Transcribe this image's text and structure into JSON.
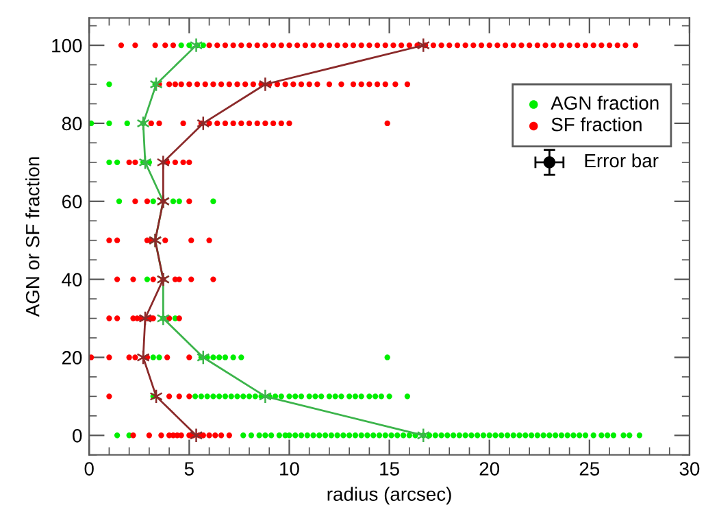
{
  "chart_data": {
    "type": "scatter",
    "xlabel": "radius (arcsec)",
    "ylabel": "AGN or SF fraction",
    "xlim": [
      0,
      30
    ],
    "ylim": [
      -5,
      107
    ],
    "xticks": [
      0,
      5,
      10,
      15,
      20,
      25,
      30,
      {
        "value": 1,
        "label": null
      },
      {
        "value": 2,
        "label": null
      },
      {
        "value": 3,
        "label": null
      },
      {
        "value": 4,
        "label": null
      },
      {
        "value": 6,
        "label": null
      },
      {
        "value": 7,
        "label": null
      },
      {
        "value": 8,
        "label": null
      },
      {
        "value": 9,
        "label": null
      },
      {
        "value": 11,
        "label": null
      },
      {
        "value": 12,
        "label": null
      },
      {
        "value": 13,
        "label": null
      },
      {
        "value": 14,
        "label": null
      },
      {
        "value": 16,
        "label": null
      },
      {
        "value": 17,
        "label": null
      },
      {
        "value": 18,
        "label": null
      },
      {
        "value": 19,
        "label": null
      },
      {
        "value": 21,
        "label": null
      },
      {
        "value": 22,
        "label": null
      },
      {
        "value": 23,
        "label": null
      },
      {
        "value": 24,
        "label": null
      },
      {
        "value": 26,
        "label": null
      },
      {
        "value": 27,
        "label": null
      },
      {
        "value": 28,
        "label": null
      },
      {
        "value": 29,
        "label": null
      }
    ],
    "yticks": [
      0,
      20,
      40,
      60,
      80,
      100,
      {
        "value": -5,
        "label": null
      },
      {
        "value": 5,
        "label": null
      },
      {
        "value": 10,
        "label": null
      },
      {
        "value": 15,
        "label": null
      },
      {
        "value": 25,
        "label": null
      },
      {
        "value": 30,
        "label": null
      },
      {
        "value": 35,
        "label": null
      },
      {
        "value": 45,
        "label": null
      },
      {
        "value": 50,
        "label": null
      },
      {
        "value": 55,
        "label": null
      },
      {
        "value": 65,
        "label": null
      },
      {
        "value": 70,
        "label": null
      },
      {
        "value": 75,
        "label": null
      },
      {
        "value": 85,
        "label": null
      },
      {
        "value": 90,
        "label": null
      },
      {
        "value": 95,
        "label": null
      },
      {
        "value": 105,
        "label": null
      }
    ],
    "annotations": [
      {
        "text": "Error bar",
        "x": 23.0,
        "y": 70
      }
    ],
    "grid": false,
    "legend": "top right",
    "marker": "circle",
    "series": [
      {
        "name": "AGN fraction",
        "color": "#00ee00",
        "x": [
          1.4,
          2.0,
          7.7,
          8.1,
          8.5,
          8.8,
          9.1,
          9.5,
          9.8,
          10.0,
          10.3,
          10.6,
          10.9,
          11.2,
          11.5,
          11.8,
          12.1,
          12.4,
          12.7,
          13.0,
          13.3,
          13.6,
          13.9,
          14.2,
          14.5,
          14.8,
          15.1,
          15.4,
          15.7,
          16.0,
          16.3,
          16.7,
          17.0,
          17.3,
          17.6,
          17.9,
          18.2,
          18.5,
          18.8,
          19.1,
          19.4,
          19.7,
          20.0,
          20.3,
          20.6,
          20.9,
          21.2,
          21.5,
          21.8,
          22.1,
          22.4,
          22.7,
          23.0,
          23.3,
          23.6,
          23.9,
          24.2,
          24.5,
          24.8,
          25.2,
          25.6,
          25.9,
          26.2,
          26.7,
          27.0,
          27.5,
          3.2,
          5.3,
          5.6,
          5.9,
          6.2,
          6.5,
          6.8,
          7.1,
          7.4,
          7.7,
          8.0,
          8.3,
          8.6,
          9.0,
          9.3,
          9.6,
          10.0,
          10.3,
          10.6,
          11.0,
          11.3,
          11.6,
          12.0,
          12.3,
          12.6,
          13.0,
          13.3,
          13.6,
          14.0,
          14.3,
          14.6,
          15.0,
          15.9,
          3.2,
          3.5,
          5.6,
          5.9,
          6.2,
          6.5,
          6.8,
          7.2,
          7.6,
          14.9,
          3.7,
          4.3,
          2.9,
          1.5,
          3.2,
          4.2,
          4.5,
          6.2,
          1.0,
          1.4,
          2.7,
          3.0,
          0.1,
          1.0,
          1.9,
          2.7,
          1.0,
          3.3,
          4.6,
          5.0,
          5.4,
          5.7
        ],
        "values": [
          0,
          0,
          0,
          0,
          0,
          0,
          0,
          0,
          0,
          0,
          0,
          0,
          0,
          0,
          0,
          0,
          0,
          0,
          0,
          0,
          0,
          0,
          0,
          0,
          0,
          0,
          0,
          0,
          0,
          0,
          0,
          0,
          0,
          0,
          0,
          0,
          0,
          0,
          0,
          0,
          0,
          0,
          0,
          0,
          0,
          0,
          0,
          0,
          0,
          0,
          0,
          0,
          0,
          0,
          0,
          0,
          0,
          0,
          0,
          0,
          0,
          0,
          0,
          0,
          0,
          0,
          10,
          10,
          10,
          10,
          10,
          10,
          10,
          10,
          10,
          10,
          10,
          10,
          10,
          10,
          10,
          10,
          10,
          10,
          10,
          10,
          10,
          10,
          10,
          10,
          10,
          10,
          10,
          10,
          10,
          10,
          10,
          10,
          10,
          20,
          20,
          20,
          20,
          20,
          20,
          20,
          20,
          20,
          20,
          30,
          30,
          40,
          60,
          60,
          60,
          60,
          60,
          70,
          70,
          70,
          70,
          80,
          80,
          80,
          80,
          90,
          90,
          100,
          100,
          100,
          100
        ]
      },
      {
        "name": "SF fraction",
        "color": "#ff0000",
        "x": [
          2.2,
          3.0,
          3.6,
          4.0,
          4.2,
          4.4,
          4.6,
          5.0,
          5.2,
          5.5,
          5.7,
          6.0,
          6.3,
          6.6,
          7.0,
          1.0,
          4.0,
          4.5,
          5.0,
          0.1,
          1.0,
          2.0,
          2.3,
          2.9,
          3.9,
          5.0,
          1.0,
          1.4,
          2.2,
          2.4,
          2.6,
          2.9,
          3.1,
          3.2,
          4.0,
          4.5,
          1.4,
          2.2,
          3.2,
          3.7,
          4.3,
          4.5,
          5.1,
          6.2,
          1.0,
          1.4,
          2.9,
          3.1,
          3.8,
          5.1,
          6.0,
          2.3,
          2.9,
          3.7,
          5.0,
          2.0,
          2.3,
          3.9,
          4.3,
          4.7,
          5.0,
          3.1,
          3.5,
          4.7,
          5.6,
          6.0,
          6.4,
          6.8,
          7.2,
          7.6,
          8.0,
          8.4,
          8.8,
          9.2,
          9.6,
          10.0,
          14.9,
          3.5,
          4.0,
          4.3,
          4.6,
          5.0,
          5.4,
          5.8,
          6.2,
          6.6,
          7.0,
          7.4,
          7.8,
          8.2,
          8.6,
          9.0,
          9.4,
          9.8,
          10.2,
          10.6,
          11.0,
          11.4,
          12.0,
          12.6,
          13.2,
          13.6,
          14.0,
          14.4,
          14.8,
          15.3,
          15.9,
          1.6,
          2.3,
          3.3,
          3.8,
          4.2,
          6.0,
          6.4,
          6.8,
          7.2,
          7.6,
          8.0,
          8.4,
          8.8,
          9.2,
          9.6,
          10.0,
          10.4,
          10.8,
          11.2,
          11.6,
          12.0,
          12.4,
          12.8,
          13.2,
          13.6,
          14.0,
          14.4,
          14.8,
          15.2,
          15.6,
          16.0,
          16.4,
          16.8,
          17.2,
          17.6,
          18.0,
          18.4,
          18.8,
          19.2,
          19.6,
          20.0,
          20.4,
          20.8,
          21.2,
          21.6,
          22.0,
          22.4,
          22.8,
          23.2,
          23.6,
          24.0,
          24.4,
          24.8,
          25.2,
          25.6,
          26.0,
          26.4,
          26.8,
          27.3
        ],
        "values": [
          0,
          0,
          0,
          0,
          0,
          0,
          0,
          0,
          0,
          0,
          0,
          0,
          0,
          0,
          0,
          10,
          10,
          10,
          10,
          20,
          20,
          20,
          20,
          20,
          20,
          20,
          30,
          30,
          30,
          30,
          30,
          30,
          30,
          30,
          30,
          30,
          40,
          40,
          40,
          40,
          40,
          40,
          40,
          40,
          50,
          50,
          50,
          50,
          50,
          50,
          50,
          60,
          60,
          60,
          60,
          70,
          70,
          70,
          70,
          70,
          70,
          80,
          80,
          80,
          80,
          80,
          80,
          80,
          80,
          80,
          80,
          80,
          80,
          80,
          80,
          80,
          80,
          90,
          90,
          90,
          90,
          90,
          90,
          90,
          90,
          90,
          90,
          90,
          90,
          90,
          90,
          90,
          90,
          90,
          90,
          90,
          90,
          90,
          90,
          90,
          90,
          90,
          90,
          90,
          90,
          90,
          90,
          100,
          100,
          100,
          100,
          100,
          100,
          100,
          100,
          100,
          100,
          100,
          100,
          100,
          100,
          100,
          100,
          100,
          100,
          100,
          100,
          100,
          100,
          100,
          100,
          100,
          100,
          100,
          100,
          100,
          100,
          100,
          100,
          100,
          100,
          100,
          100,
          100,
          100,
          100,
          100,
          100,
          100,
          100,
          100,
          100,
          100,
          100,
          100,
          100,
          100,
          100,
          100,
          100,
          100,
          100,
          100,
          100,
          100,
          100
        ]
      },
      {
        "type": "line",
        "color": "#3cb44b",
        "marker": "cross",
        "x": [
          16.7,
          8.8,
          5.7,
          3.7,
          3.7,
          3.3,
          3.7,
          2.8,
          2.7,
          3.35,
          5.35
        ],
        "values": [
          0,
          10,
          20,
          30,
          40,
          50,
          60,
          70,
          80,
          90,
          100
        ]
      },
      {
        "type": "line",
        "color": "#8b2a2a",
        "marker": "cross",
        "x": [
          5.35,
          3.35,
          2.7,
          2.8,
          3.7,
          3.3,
          3.7,
          3.7,
          5.7,
          8.8,
          16.7
        ],
        "values": [
          0,
          10,
          20,
          30,
          40,
          50,
          60,
          70,
          80,
          90,
          100
        ]
      },
      {
        "color": "#000000",
        "x": [
          23.0
        ],
        "values": [
          70
        ],
        "errors": [
          3.2
        ],
        "xerrors": [
          0.7
        ]
      }
    ]
  }
}
